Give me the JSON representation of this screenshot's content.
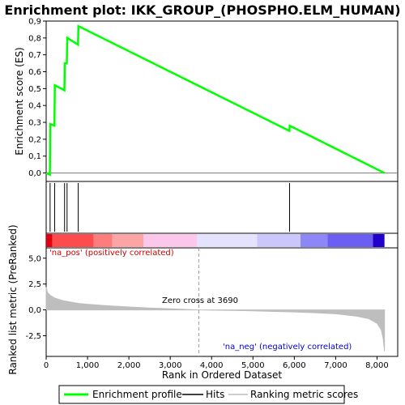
{
  "chart_data": {
    "type": "line",
    "title": "Enrichment plot: IKK_GROUP_(PHOSPHO.ELM_HUMAN)",
    "xlabel": "Rank in Ordered Dataset",
    "xlim": [
      0,
      8500
    ],
    "x_ticks": [
      0,
      1000,
      2000,
      3000,
      4000,
      5000,
      6000,
      7000,
      8000
    ],
    "x_tick_labels": [
      "0",
      "1,000",
      "2,000",
      "3,000",
      "4,000",
      "5,000",
      "6,000",
      "7,000",
      "8,000"
    ],
    "enrichment_panel": {
      "ylabel": "Enrichment score (ES)",
      "ylim": [
        -0.05,
        0.9
      ],
      "y_ticks": [
        0.0,
        0.1,
        0.2,
        0.3,
        0.4,
        0.5,
        0.6,
        0.7,
        0.8,
        0.9
      ],
      "y_tick_labels": [
        "0,0",
        "0,1",
        "0,2",
        "0,3",
        "0,4",
        "0,5",
        "0,6",
        "0,7",
        "0,8",
        "0,9"
      ],
      "series": [
        {
          "name": "Enrichment profile",
          "color": "#00ff00",
          "x": [
            0,
            90,
            100,
            200,
            210,
            440,
            450,
            500,
            510,
            770,
            780,
            5880,
            5890,
            8180
          ],
          "y": [
            0.0,
            -0.01,
            0.29,
            0.28,
            0.52,
            0.49,
            0.65,
            0.65,
            0.8,
            0.76,
            0.87,
            0.25,
            0.28,
            0.0
          ]
        }
      ]
    },
    "hits": {
      "name": "Hits",
      "color": "#000000",
      "x": [
        95,
        205,
        445,
        505,
        775,
        5885
      ]
    },
    "heatmap_bar": {
      "segments": [
        {
          "x0": 0,
          "x1": 150,
          "color": "#e0000f"
        },
        {
          "x0": 150,
          "x1": 1150,
          "color": "#fe4b4b"
        },
        {
          "x0": 1150,
          "x1": 1600,
          "color": "#fd7d7d"
        },
        {
          "x0": 1600,
          "x1": 2350,
          "color": "#fda4a4"
        },
        {
          "x0": 2350,
          "x1": 3650,
          "color": "#fbc8ec"
        },
        {
          "x0": 3650,
          "x1": 5100,
          "color": "#e4e2fd"
        },
        {
          "x0": 5100,
          "x1": 6150,
          "color": "#cbc7fb"
        },
        {
          "x0": 6150,
          "x1": 6800,
          "color": "#8c86f7"
        },
        {
          "x0": 6800,
          "x1": 7900,
          "color": "#6a5ff2"
        },
        {
          "x0": 7900,
          "x1": 8180,
          "color": "#2100cc"
        }
      ]
    },
    "metric_panel": {
      "ylabel": "Ranked list metric (PreRanked)",
      "ylim": [
        -4.5,
        6.0
      ],
      "y_ticks": [
        5.0,
        2.5,
        0.0,
        -2.5
      ],
      "y_tick_labels": [
        "5,0",
        "2,5",
        "0,0",
        "-2,5"
      ],
      "series": [
        {
          "name": "Ranking metric scores",
          "color": "#bebebe",
          "x": [
            0,
            30,
            100,
            200,
            400,
            600,
            800,
            1000,
            1500,
            2000,
            2500,
            3000,
            3690,
            4500,
            5000,
            5500,
            6000,
            6500,
            7000,
            7500,
            7800,
            8000,
            8100,
            8150,
            8180
          ],
          "y": [
            2.2,
            1.7,
            1.4,
            1.15,
            0.9,
            0.75,
            0.62,
            0.55,
            0.4,
            0.28,
            0.18,
            0.1,
            0.0,
            -0.05,
            -0.1,
            -0.15,
            -0.2,
            -0.28,
            -0.38,
            -0.6,
            -0.85,
            -1.3,
            -1.9,
            -2.8,
            -4.0
          ]
        }
      ],
      "zero_cross": 3690,
      "zero_cross_label": "Zero cross at 3690",
      "pos_label": "'na_pos' (positively correlated)",
      "neg_label": "'na_neg' (negatively correlated)"
    },
    "legend": [
      "Enrichment profile",
      "Hits",
      "Ranking metric scores"
    ]
  }
}
